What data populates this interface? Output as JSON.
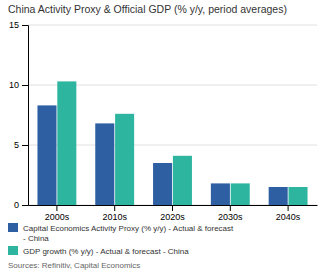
{
  "chart_data": {
    "type": "bar",
    "title": "China Activity Proxy & Official GDP (% y/y, period averages)",
    "categories": [
      "2000s",
      "2010s",
      "2020s",
      "2030s",
      "2040s"
    ],
    "series": [
      {
        "name": "Capital Economics Activity Proxy (% y/y) - Actual & forecast\n- China",
        "color": "#2e5fa3",
        "values": [
          8.3,
          6.8,
          3.5,
          1.8,
          1.5
        ]
      },
      {
        "name": "GDP growth (% y/y) - Actual & forecast - China",
        "color": "#2db5a0",
        "values": [
          10.3,
          7.6,
          4.1,
          1.8,
          1.5
        ]
      }
    ],
    "ylim": [
      0,
      15
    ],
    "yticks": [
      0,
      5,
      10,
      15
    ],
    "grid": true,
    "legend": "bottom",
    "source": "Sources: Refinitiv, Capital Economics"
  }
}
